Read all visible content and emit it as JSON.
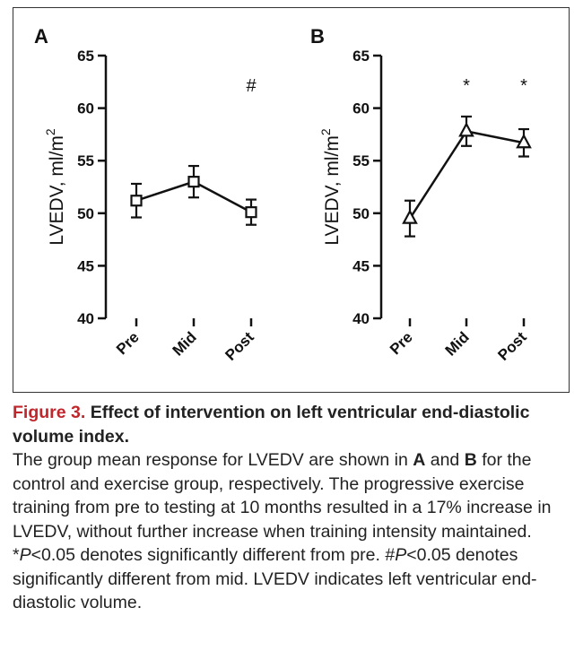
{
  "figure": {
    "number_label": "Figure 3.",
    "title": "Effect of intervention on left ventricular end-diastolic volume index.",
    "description_parts": [
      {
        "t": "The group mean response for LVEDV are shown in ",
        "s": ""
      },
      {
        "t": "A",
        "s": "b"
      },
      {
        "t": " and ",
        "s": ""
      },
      {
        "t": "B",
        "s": "b"
      },
      {
        "t": " for the control and exercise group, respectively. The progressive exercise training from pre to testing at 10 months resulted in a 17% increase in LVEDV, without further increase when training intensity maintained. *",
        "s": ""
      },
      {
        "t": "P",
        "s": "i"
      },
      {
        "t": "<0.05 denotes significantly different from pre. #",
        "s": ""
      },
      {
        "t": "P",
        "s": "i"
      },
      {
        "t": "<0.05 denotes significantly different from mid. LVEDV indicates left ventricular end-diastolic volume.",
        "s": ""
      }
    ]
  },
  "chart_data": [
    {
      "type": "line",
      "panel": "A",
      "categories": [
        "Pre",
        "Mid",
        "Post"
      ],
      "values": [
        51.2,
        53.0,
        50.1
      ],
      "error": [
        1.6,
        1.5,
        1.2
      ],
      "marker": "square",
      "annotations": [
        {
          "category": "Post",
          "text": "#"
        }
      ],
      "ylabel": "LVEDV, ml/m",
      "ylabel_superscript": "2",
      "ylim": [
        40,
        65
      ],
      "yticks": [
        40,
        45,
        50,
        55,
        60,
        65
      ],
      "grid": false
    },
    {
      "type": "line",
      "panel": "B",
      "categories": [
        "Pre",
        "Mid",
        "Post"
      ],
      "values": [
        49.5,
        57.8,
        56.7
      ],
      "error": [
        1.7,
        1.4,
        1.3
      ],
      "marker": "triangle",
      "annotations": [
        {
          "category": "Mid",
          "text": "*"
        },
        {
          "category": "Post",
          "text": "*"
        }
      ],
      "ylabel": "LVEDV, ml/m",
      "ylabel_superscript": "2",
      "ylim": [
        40,
        65
      ],
      "yticks": [
        40,
        45,
        50,
        55,
        60,
        65
      ],
      "grid": false
    }
  ]
}
